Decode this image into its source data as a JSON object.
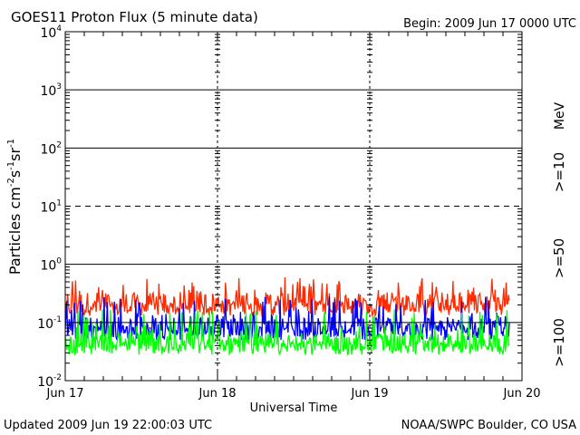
{
  "chart_data": {
    "type": "line",
    "title": "GOES11 Proton Flux (5 minute data)",
    "begin": "Begin: 2009 Jun 17 0000 UTC",
    "xlabel": "Universal Time",
    "ylabel": {
      "base": "Particles cm",
      "exp1": "-2",
      "mid1": "s",
      "exp2": "-1",
      "mid2": "sr",
      "exp3": "-1"
    },
    "x_ticks": [
      "Jun 17",
      "Jun 18",
      "Jun 19",
      "Jun 20"
    ],
    "xlim": [
      "2009-06-17 00:00",
      "2009-06-20 00:00"
    ],
    "y_ticks": [
      {
        "base": "10",
        "exp": "4",
        "value": 10000
      },
      {
        "base": "10",
        "exp": "3",
        "value": 1000
      },
      {
        "base": "10",
        "exp": "2",
        "value": 100
      },
      {
        "base": "10",
        "exp": "1",
        "value": 10
      },
      {
        "base": "10",
        "exp": "0",
        "value": 1
      },
      {
        "base": "10",
        "exp": "-1",
        "value": 0.1
      },
      {
        "base": "10",
        "exp": "-2",
        "value": 0.01
      }
    ],
    "ylim": [
      0.01,
      10000
    ],
    "yscale": "log",
    "grid": {
      "horizontal_solid_at": [
        1000,
        100,
        1,
        0.1
      ],
      "horizontal_dashed_at": [
        10
      ],
      "vertical_dashed_at_days": [
        1,
        2
      ]
    },
    "unit_label": "MeV",
    "series": [
      {
        "name": ">=10",
        "color": "#ff2a00",
        "typical": 0.22,
        "low": 0.13,
        "high": 0.6
      },
      {
        "name": ">=50",
        "color": "#0000ff",
        "typical": 0.085,
        "low": 0.05,
        "high": 0.3
      },
      {
        "name": ">=100",
        "color": "#00ff00",
        "typical": 0.045,
        "low": 0.028,
        "high": 0.17
      }
    ],
    "data_end": "2009-06-19 22:00"
  },
  "footer": {
    "updated": "Updated 2009 Jun 19 22:00:03 UTC",
    "credit": "NOAA/SWPC Boulder, CO USA"
  }
}
